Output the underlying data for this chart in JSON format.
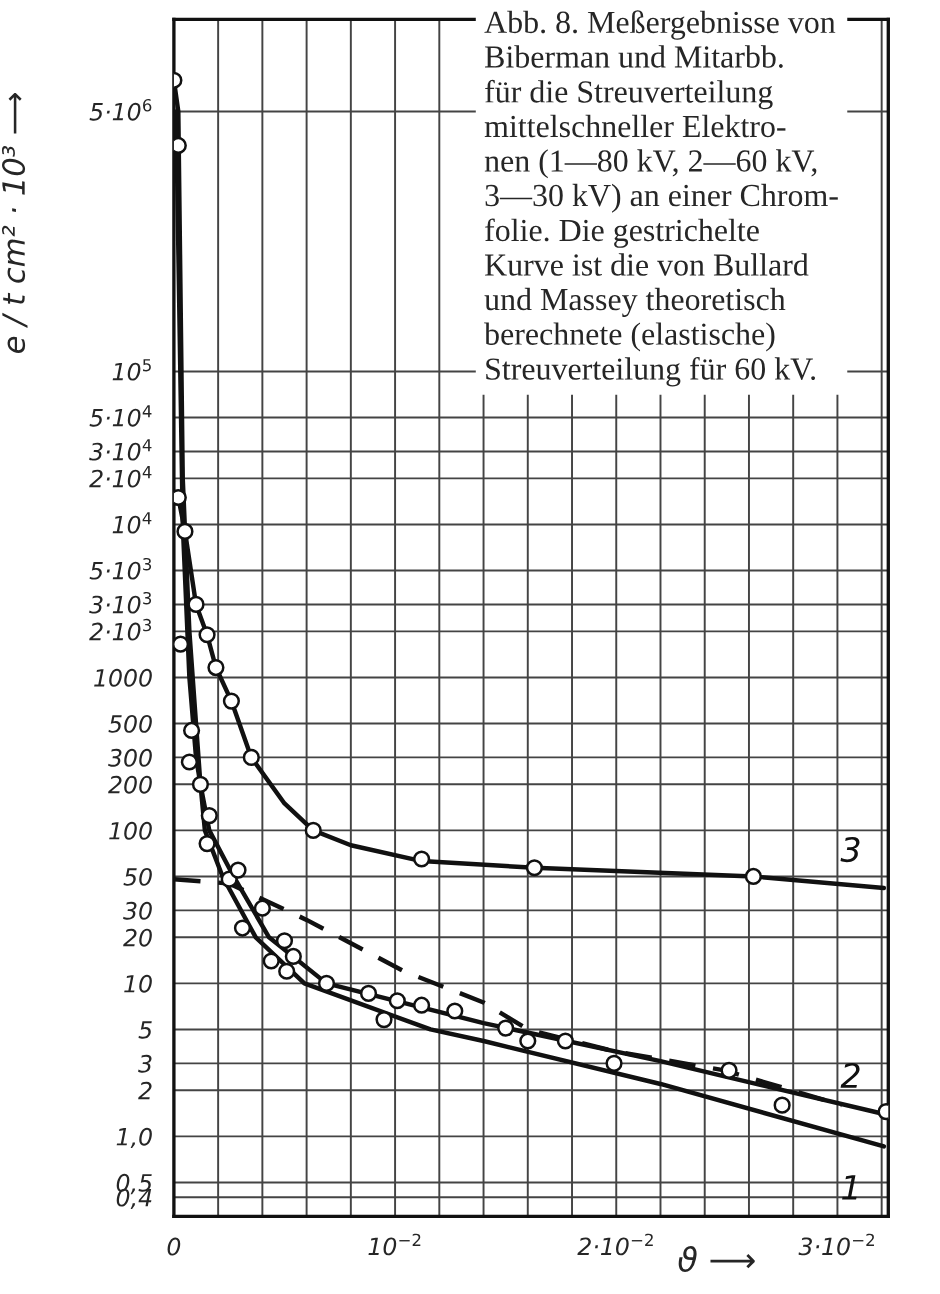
{
  "chart_data": {
    "type": "line",
    "annotations": [
      "Abb. 8. Meßergebnisse von\nBiberman und Mitarbb.\nfür die Streuverteilung\nmittelschneller Elektro-\nnen (1—80 kV, 2—60 kV,\n3—30 kV) an einer Chrom-\nfolie. Die gestrichelte\nKurve ist die von Bullard\nund Massey theoretisch\nberechnete (elastische)\nStreuverteilung für 60 kV."
    ],
    "xlabel": "ϑ ⟶",
    "ylabel": "e / t cm² · 10³ ⟶",
    "log": "y",
    "grid": true,
    "legend": false,
    "xlim": [
      0,
      0.0323
    ],
    "ylim": [
      0.3,
      20000000
    ],
    "xticks": [
      {
        "value": 0,
        "label": "0"
      },
      {
        "value": 0.002,
        "label": null
      },
      {
        "value": 0.004,
        "label": null
      },
      {
        "value": 0.006,
        "label": null
      },
      {
        "value": 0.008,
        "label": null
      },
      {
        "value": 0.01,
        "label": "10$^{−2}$"
      },
      {
        "value": 0.012,
        "label": null
      },
      {
        "value": 0.014,
        "label": null
      },
      {
        "value": 0.016,
        "label": null
      },
      {
        "value": 0.018,
        "label": null
      },
      {
        "value": 0.02,
        "label": "2·10$^{−2}$"
      },
      {
        "value": 0.022,
        "label": null
      },
      {
        "value": 0.024,
        "label": null
      },
      {
        "value": 0.026,
        "label": null
      },
      {
        "value": 0.028,
        "label": null
      },
      {
        "value": 0.03,
        "label": "3·10$^{−2}$"
      },
      {
        "value": 0.032,
        "label": null
      }
    ],
    "yticks": [
      {
        "value": 0.4,
        "label": "0,4"
      },
      {
        "value": 0.5,
        "label": "0,5"
      },
      {
        "value": 1,
        "label": "1,0"
      },
      2,
      3,
      5,
      10,
      20,
      30,
      50,
      100,
      200,
      300,
      500,
      1000,
      {
        "value": 2000,
        "label": "2·10$^{3}$"
      },
      {
        "value": 3000,
        "label": "3·10$^{3}$"
      },
      {
        "value": 5000,
        "label": "5·10$^{3}$"
      },
      {
        "value": 10000,
        "label": "10$^{4}$"
      },
      {
        "value": 20000,
        "label": "2·10$^{4}$"
      },
      {
        "value": 30000,
        "label": "3·10$^{4}$"
      },
      {
        "value": 50000,
        "label": "5·10$^{4}$"
      },
      {
        "value": 100000,
        "label": "10$^{5}$"
      },
      {
        "value": 5000000,
        "label": "5·10$^{6}$"
      }
    ],
    "series": [
      {
        "name": "3",
        "type": "line",
        "line_style": "solid",
        "color": "#111111",
        "x": [
          0.0002,
          0.0005,
          0.001,
          0.0015,
          0.0019,
          0.0026,
          0.0035,
          0.005,
          0.0063,
          0.008,
          0.0112,
          0.0163,
          0.0262,
          0.0321
        ],
        "values": [
          15000,
          9000,
          3000,
          1900,
          1160,
          700,
          300,
          150,
          100,
          80,
          63,
          57,
          50,
          42
        ]
      },
      {
        "name": "2",
        "type": "line",
        "line_style": "solid",
        "color": "#111111",
        "x": [
          0,
          0.0002,
          0.0004,
          0.0007,
          0.001,
          0.0012,
          0.0016,
          0.0027,
          0.0043,
          0.0069,
          0.014,
          0.022,
          0.0321
        ],
        "values": [
          8000000,
          5000000,
          20000,
          2000,
          500,
          200,
          100,
          50,
          20,
          10,
          5.5,
          3.1,
          1.4
        ]
      },
      {
        "name": "1",
        "type": "line",
        "line_style": "solid",
        "color": "#111111",
        "x": [
          0.0001,
          0.0004,
          0.0007,
          0.001,
          0.0012,
          0.0014,
          0.0022,
          0.0037,
          0.0059,
          0.0116,
          0.014,
          0.022,
          0.0321
        ],
        "values": [
          5000000,
          10000,
          1000,
          300,
          200,
          100,
          50,
          20,
          10,
          5,
          4.2,
          2.2,
          0.86
        ]
      },
      {
        "type": "line",
        "line_style": "dashed",
        "color": "#111111",
        "x": [
          0,
          0.0025,
          0.006,
          0.0104,
          0.014,
          0.016,
          0.0199,
          0.0249,
          0.0302
        ],
        "values": [
          48,
          45,
          26,
          12,
          7.5,
          5,
          3.6,
          2.7,
          1.6
        ]
      },
      {
        "type": "scatter",
        "marker": "circle",
        "color": "#111111",
        "x": [
          0,
          0.0002,
          0.0002,
          0.0005,
          0.001,
          0.0015,
          0.0019,
          0.0026,
          0.0035,
          0.0063,
          0.0112,
          0.0163,
          0.0262,
          0.0003,
          0.0008,
          0.0007,
          0.0012,
          0.0016,
          0.0015,
          0.0025,
          0.0029,
          0.004,
          0.0031,
          0.005,
          0.0054,
          0.0044,
          0.0051,
          0.0069,
          0.0088,
          0.0101,
          0.0095,
          0.0112,
          0.0127,
          0.015,
          0.016,
          0.0177,
          0.0199,
          0.0251,
          0.0275,
          0.0322
        ],
        "values": [
          8000000,
          3000000,
          15000,
          9000,
          3000,
          1900,
          1160,
          700,
          300,
          100,
          65,
          57,
          50,
          1650,
          450,
          280,
          200,
          125,
          82,
          48,
          55,
          31,
          23,
          19,
          15,
          14,
          12,
          10,
          8.6,
          7.7,
          5.8,
          7.2,
          6.6,
          5.1,
          4.2,
          4.2,
          3.0,
          2.7,
          1.6,
          1.45
        ]
      }
    ]
  }
}
